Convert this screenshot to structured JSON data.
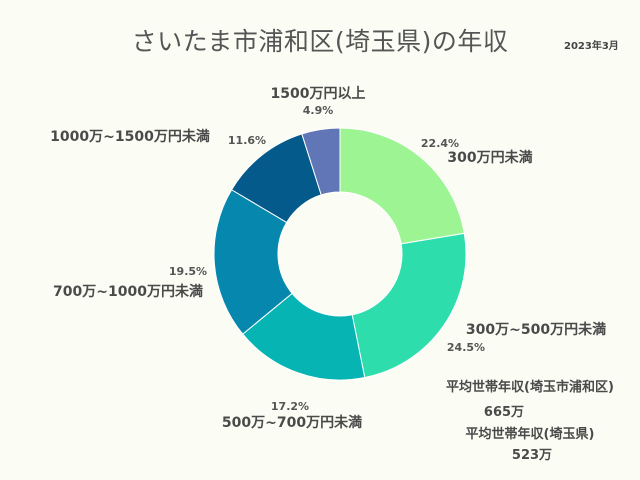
{
  "chart_data": {
    "type": "pie",
    "title": "さいたま市浦和区(埼玉県)の年収",
    "date": "2023年3月",
    "categories": [
      "300万円未満",
      "300万~500万円未満",
      "500万~700万円未満",
      "700万~1000万円未満",
      "1000万~1500万円未満",
      "1500万円以上"
    ],
    "values": [
      22.4,
      24.5,
      17.2,
      19.5,
      11.6,
      4.9
    ],
    "value_labels": [
      "22.4%",
      "24.5%",
      "17.2%",
      "19.5%",
      "11.6%",
      "4.9%"
    ],
    "colors": [
      "#9cf592",
      "#2ddeac",
      "#06b4b4",
      "#0587ae",
      "#055a8c",
      "#6076b6"
    ],
    "donut": true
  },
  "annotations": {
    "avg_ward_label": "平均世帯年収(埼玉市浦和区)",
    "avg_ward_value": "665万",
    "avg_pref_label": "平均世帯年収(埼玉県)",
    "avg_pref_value": "523万"
  }
}
